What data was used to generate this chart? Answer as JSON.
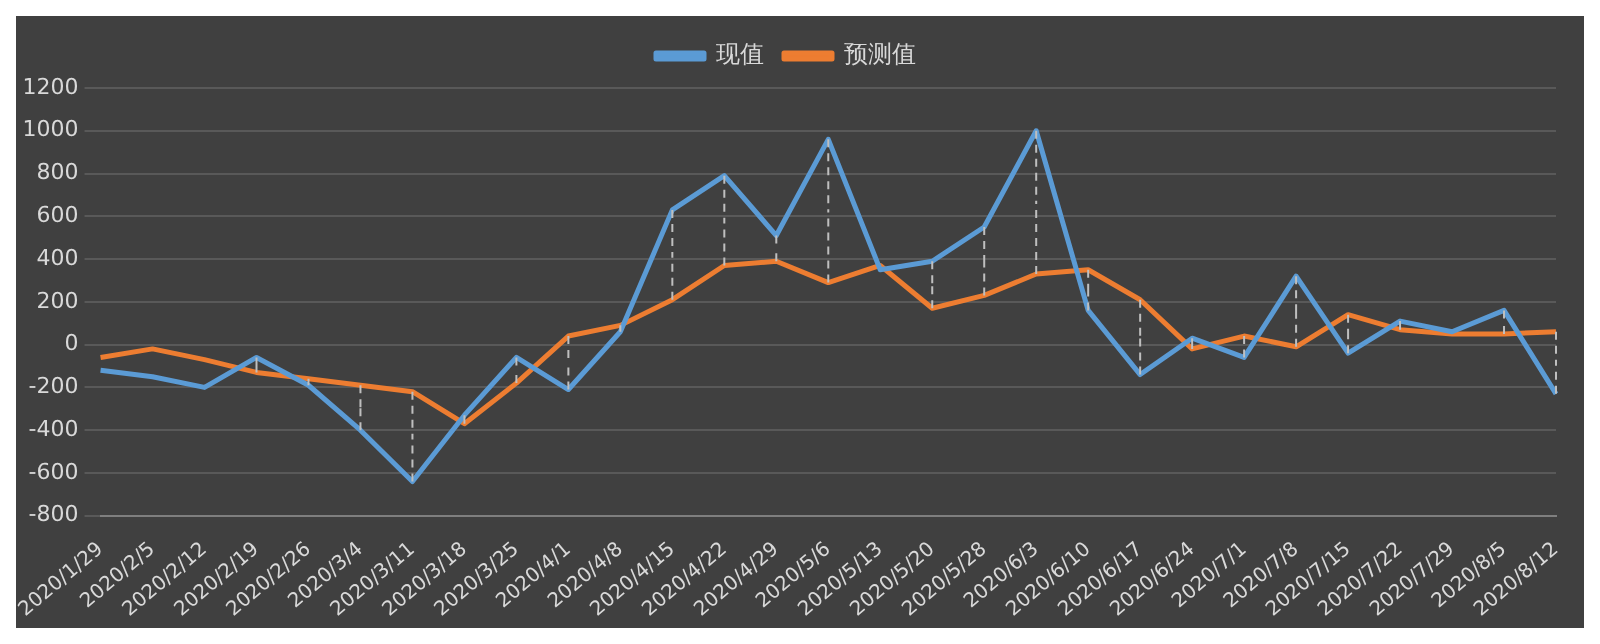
{
  "chart_data": {
    "type": "line",
    "categories": [
      "2020/1/29",
      "2020/2/5",
      "2020/2/12",
      "2020/2/19",
      "2020/2/26",
      "2020/3/4",
      "2020/3/11",
      "2020/3/18",
      "2020/3/25",
      "2020/4/1",
      "2020/4/8",
      "2020/4/15",
      "2020/4/22",
      "2020/4/29",
      "2020/5/6",
      "2020/5/13",
      "2020/5/20",
      "2020/5/28",
      "2020/6/3",
      "2020/6/10",
      "2020/6/17",
      "2020/6/24",
      "2020/7/1",
      "2020/7/8",
      "2020/7/15",
      "2020/7/22",
      "2020/7/29",
      "2020/8/5",
      "2020/8/12"
    ],
    "series": [
      {
        "name": "现值",
        "color": "#5b9bd5",
        "values": [
          -120,
          -150,
          -200,
          -60,
          -190,
          -400,
          -640,
          -330,
          -60,
          -210,
          60,
          630,
          790,
          510,
          960,
          350,
          390,
          550,
          1000,
          160,
          -140,
          30,
          -60,
          320,
          -40,
          110,
          60,
          160,
          -230
        ],
        "errors": [
          null,
          null,
          null,
          [
            -130,
            -60
          ],
          [
            -190,
            -160
          ],
          [
            -400,
            -190
          ],
          [
            -640,
            -220
          ],
          [
            -370,
            -330
          ],
          [
            -180,
            -60
          ],
          [
            -210,
            40
          ],
          [
            60,
            90
          ],
          [
            210,
            630
          ],
          [
            370,
            790
          ],
          [
            390,
            510
          ],
          [
            290,
            960
          ],
          null,
          [
            170,
            390
          ],
          [
            230,
            550
          ],
          [
            330,
            1000
          ],
          [
            160,
            350
          ],
          [
            -140,
            210
          ],
          [
            -20,
            30
          ],
          [
            -60,
            40
          ],
          [
            -10,
            320
          ],
          [
            -40,
            140
          ],
          [
            70,
            110
          ],
          null,
          [
            50,
            160
          ],
          [
            -230,
            60
          ]
        ]
      },
      {
        "name": "预测值",
        "color": "#ed7d31",
        "values": [
          -60,
          -20,
          -70,
          -130,
          -160,
          -190,
          -220,
          -370,
          -180,
          40,
          90,
          210,
          370,
          390,
          290,
          370,
          170,
          230,
          330,
          350,
          210,
          -20,
          40,
          -10,
          140,
          70,
          50,
          50,
          60
        ]
      }
    ],
    "ylim": [
      -800,
      1200
    ],
    "yticks": [
      -800,
      -600,
      -400,
      -200,
      0,
      200,
      400,
      600,
      800,
      1000,
      1200
    ],
    "grid": "y",
    "legend": "top",
    "marker": "none",
    "line_style": "solid"
  }
}
